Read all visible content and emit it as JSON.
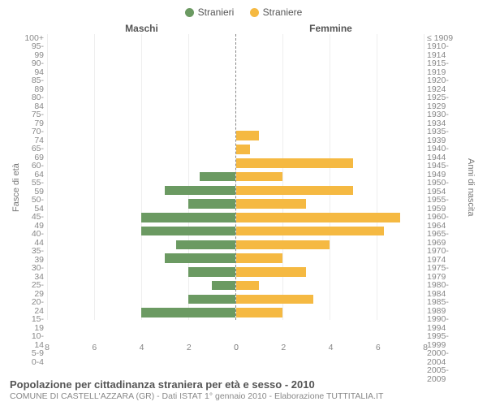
{
  "legend": {
    "male": {
      "label": "Stranieri",
      "color": "#6b9a62"
    },
    "female": {
      "label": "Straniere",
      "color": "#f5b942"
    }
  },
  "headers": {
    "left": "Maschi",
    "right": "Femmine"
  },
  "axis_labels": {
    "left": "Fasce di età",
    "right": "Anni di nascita"
  },
  "chart": {
    "type": "population-pyramid",
    "background_color": "#ffffff",
    "grid_color": "#eeeeee",
    "center_line": "#888888",
    "xmax": 8,
    "xticks": [
      0,
      2,
      4,
      6,
      8
    ],
    "bar_height_pct": 78,
    "rows": [
      {
        "age": "100+",
        "birth": "≤ 1909",
        "m": 0,
        "f": 0
      },
      {
        "age": "95-99",
        "birth": "1910-1914",
        "m": 0,
        "f": 0
      },
      {
        "age": "90-94",
        "birth": "1915-1919",
        "m": 0,
        "f": 0
      },
      {
        "age": "85-89",
        "birth": "1920-1924",
        "m": 0,
        "f": 0
      },
      {
        "age": "80-84",
        "birth": "1925-1929",
        "m": 0,
        "f": 0
      },
      {
        "age": "75-79",
        "birth": "1930-1934",
        "m": 0,
        "f": 0
      },
      {
        "age": "70-74",
        "birth": "1935-1939",
        "m": 0,
        "f": 0
      },
      {
        "age": "65-69",
        "birth": "1940-1944",
        "m": 0,
        "f": 1
      },
      {
        "age": "60-64",
        "birth": "1945-1949",
        "m": 0,
        "f": 0.6
      },
      {
        "age": "55-59",
        "birth": "1950-1954",
        "m": 0,
        "f": 5
      },
      {
        "age": "50-54",
        "birth": "1955-1959",
        "m": 1.5,
        "f": 2
      },
      {
        "age": "45-49",
        "birth": "1960-1964",
        "m": 3,
        "f": 5
      },
      {
        "age": "40-44",
        "birth": "1965-1969",
        "m": 2,
        "f": 3
      },
      {
        "age": "35-39",
        "birth": "1970-1974",
        "m": 4,
        "f": 7
      },
      {
        "age": "30-34",
        "birth": "1975-1979",
        "m": 4,
        "f": 6.3
      },
      {
        "age": "25-29",
        "birth": "1980-1984",
        "m": 2.5,
        "f": 4
      },
      {
        "age": "20-24",
        "birth": "1985-1989",
        "m": 3,
        "f": 2
      },
      {
        "age": "15-19",
        "birth": "1990-1994",
        "m": 2,
        "f": 3
      },
      {
        "age": "10-14",
        "birth": "1995-1999",
        "m": 1,
        "f": 1
      },
      {
        "age": "5-9",
        "birth": "2000-2004",
        "m": 2,
        "f": 3.3
      },
      {
        "age": "0-4",
        "birth": "2005-2009",
        "m": 4,
        "f": 2
      }
    ]
  },
  "footer": {
    "title": "Popolazione per cittadinanza straniera per età e sesso - 2010",
    "subtitle": "COMUNE DI CASTELL'AZZARA (GR) - Dati ISTAT 1° gennaio 2010 - Elaborazione TUTTITALIA.IT"
  }
}
